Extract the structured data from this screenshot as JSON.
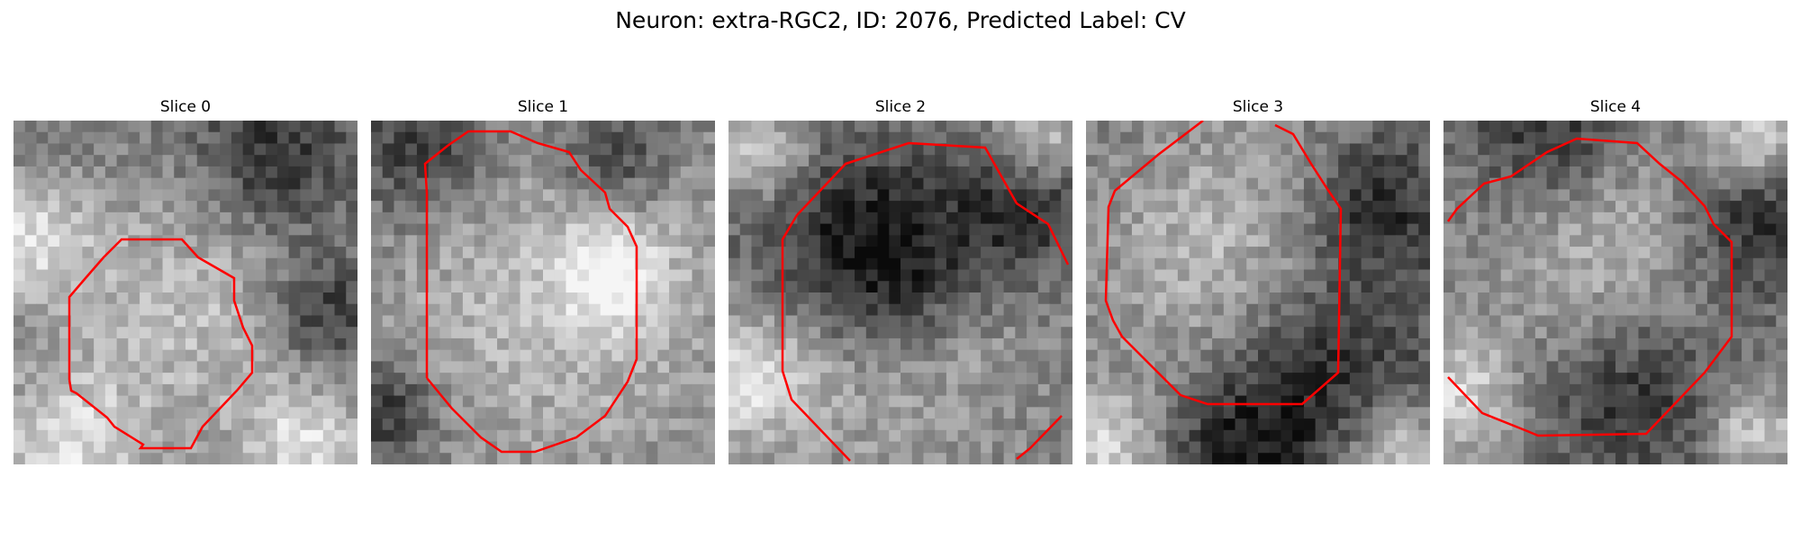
{
  "figure": {
    "title": "Neuron: extra-RGC2, ID: 2076, Predicted Label: CV",
    "contour_color": "#ff0000",
    "grid_size": 30
  },
  "panels": [
    {
      "title": "Slice 0",
      "bright_center": [
        0.52,
        0.56
      ],
      "bright_radius": 0.3,
      "dark_regions": [
        [
          0.75,
          0.1,
          0.16
        ],
        [
          0.9,
          0.55,
          0.12
        ]
      ],
      "light_regions": [
        [
          0.05,
          0.35,
          0.12
        ],
        [
          0.15,
          0.95,
          0.15
        ],
        [
          0.85,
          0.95,
          0.12
        ]
      ]
    },
    {
      "title": "Slice 1",
      "bright_center": [
        0.55,
        0.5
      ],
      "bright_radius": 0.42,
      "dark_regions": [
        [
          0.15,
          0.08,
          0.15
        ],
        [
          0.7,
          0.1,
          0.12
        ],
        [
          0.05,
          0.85,
          0.1
        ]
      ],
      "light_regions": [
        [
          0.7,
          0.45,
          0.1
        ]
      ]
    },
    {
      "title": "Slice 2",
      "bright_center": [
        0.5,
        0.62
      ],
      "bright_radius": 0.28,
      "dark_regions": [
        [
          0.35,
          0.35,
          0.22
        ],
        [
          0.85,
          0.25,
          0.15
        ],
        [
          0.5,
          0.45,
          0.18
        ]
      ],
      "light_regions": [
        [
          0.05,
          0.75,
          0.15
        ],
        [
          0.1,
          0.1,
          0.1
        ],
        [
          0.9,
          0.05,
          0.1
        ]
      ]
    },
    {
      "title": "Slice 3",
      "bright_center": [
        0.42,
        0.4
      ],
      "bright_radius": 0.28,
      "dark_regions": [
        [
          0.7,
          0.7,
          0.22
        ],
        [
          0.85,
          0.25,
          0.15
        ],
        [
          0.45,
          0.95,
          0.15
        ]
      ],
      "light_regions": [
        [
          0.05,
          0.95,
          0.12
        ],
        [
          0.9,
          0.95,
          0.1
        ]
      ]
    },
    {
      "title": "Slice 4",
      "bright_center": [
        0.48,
        0.42
      ],
      "bright_radius": 0.26,
      "dark_regions": [
        [
          0.55,
          0.78,
          0.2
        ],
        [
          0.9,
          0.3,
          0.15
        ],
        [
          0.3,
          0.05,
          0.15
        ]
      ],
      "light_regions": [
        [
          0.05,
          0.8,
          0.12
        ],
        [
          0.9,
          0.05,
          0.1
        ],
        [
          0.9,
          0.9,
          0.1
        ]
      ]
    }
  ]
}
